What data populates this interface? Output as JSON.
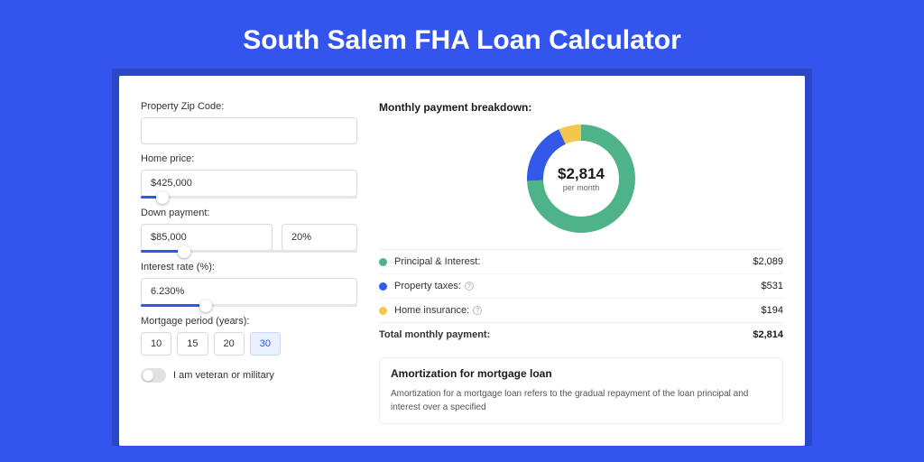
{
  "page": {
    "title": "South Salem FHA Loan Calculator",
    "bg_color": "#3355ee",
    "title_color": "#ffffff",
    "title_fontsize": 30
  },
  "form": {
    "zip_label": "Property Zip Code:",
    "zip_value": "",
    "home_price_label": "Home price:",
    "home_price_value": "$425,000",
    "home_price_slider_pct": 10,
    "down_payment_label": "Down payment:",
    "down_payment_value": "$85,000",
    "down_payment_pct_value": "20%",
    "down_payment_slider_pct": 20,
    "interest_rate_label": "Interest rate (%):",
    "interest_rate_value": "6.230%",
    "interest_rate_slider_pct": 30,
    "period_label": "Mortgage period (years):",
    "periods": [
      "10",
      "15",
      "20",
      "30"
    ],
    "period_active": "30",
    "veteran_label": "I am veteran or military",
    "veteran_on": false
  },
  "breakdown": {
    "title": "Monthly payment breakdown:",
    "center_value": "$2,814",
    "center_sub": "per month",
    "donut": {
      "size": 120,
      "stroke": 18,
      "slices": [
        {
          "key": "principal_interest",
          "value": 2089,
          "color": "#4fb38a",
          "pct": 74.2
        },
        {
          "key": "property_taxes",
          "value": 531,
          "color": "#3359e8",
          "pct": 18.9
        },
        {
          "key": "home_insurance",
          "value": 194,
          "color": "#f1c84c",
          "pct": 6.9
        }
      ]
    },
    "rows": [
      {
        "dot": "#4fb38a",
        "label": "Principal & Interest:",
        "amount": "$2,089",
        "info": false
      },
      {
        "dot": "#3359e8",
        "label": "Property taxes:",
        "amount": "$531",
        "info": true
      },
      {
        "dot": "#f1c84c",
        "label": "Home insurance:",
        "amount": "$194",
        "info": true
      }
    ],
    "total_label": "Total monthly payment:",
    "total_amount": "$2,814"
  },
  "amortization": {
    "title": "Amortization for mortgage loan",
    "text": "Amortization for a mortgage loan refers to the gradual repayment of the loan principal and interest over a specified"
  }
}
